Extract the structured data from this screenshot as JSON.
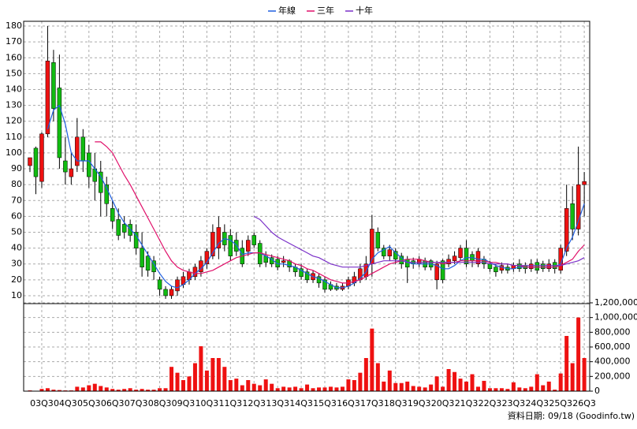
{
  "chart_data": {
    "type": "candlestick",
    "categories": [
      null,
      null,
      "03Q3",
      null,
      null,
      null,
      "04Q3",
      null,
      null,
      null,
      "05Q3",
      null,
      null,
      null,
      "06Q3",
      null,
      null,
      null,
      "07Q3",
      null,
      null,
      null,
      "08Q3",
      null,
      null,
      null,
      "09Q3",
      null,
      null,
      null,
      "10Q3",
      null,
      null,
      null,
      "11Q3",
      null,
      null,
      null,
      "12Q3",
      null,
      null,
      null,
      "13Q3",
      null,
      null,
      null,
      "14Q3",
      null,
      null,
      null,
      "15Q3",
      null,
      null,
      null,
      "16Q3",
      null,
      null,
      null,
      "17Q3",
      null,
      null,
      null,
      "18Q3",
      null,
      null,
      null,
      "19Q3",
      null,
      null,
      null,
      "20Q3",
      null,
      null,
      null,
      "21Q3",
      null,
      null,
      null,
      "22Q3",
      null,
      null,
      null,
      "23Q3",
      null,
      null,
      null,
      "24Q3",
      null,
      null,
      null,
      "25Q3",
      null,
      null,
      null,
      "26Q3"
    ],
    "candles": {
      "open": [
        92,
        103,
        82,
        112,
        157,
        141,
        95,
        85,
        92,
        110,
        100,
        90,
        88,
        80,
        65,
        58,
        55,
        55,
        50,
        40,
        35,
        32,
        20,
        14,
        10,
        13,
        17,
        20,
        22,
        25,
        30,
        35,
        40,
        50,
        48,
        45,
        40,
        38,
        48,
        43,
        35,
        34,
        33,
        31,
        32,
        28,
        27,
        25,
        20,
        22,
        20,
        17,
        16,
        14,
        16,
        18,
        20,
        22,
        30,
        50,
        40,
        35,
        38,
        35,
        33,
        32,
        30,
        32,
        32,
        20,
        32,
        30,
        32,
        34,
        40,
        36,
        30,
        33,
        30,
        28,
        26,
        28,
        27,
        30,
        29,
        27,
        31,
        30,
        27,
        31,
        26,
        38,
        68,
        52,
        80
      ],
      "high": [
        97,
        104,
        113,
        180,
        165,
        162,
        110,
        100,
        122,
        115,
        105,
        100,
        95,
        85,
        70,
        65,
        60,
        58,
        55,
        50,
        38,
        35,
        22,
        16,
        16,
        22,
        25,
        27,
        30,
        35,
        40,
        55,
        60,
        55,
        52,
        50,
        45,
        48,
        50,
        45,
        38,
        36,
        35,
        35,
        33,
        30,
        30,
        27,
        26,
        24,
        22,
        19,
        18,
        18,
        22,
        25,
        30,
        35,
        61,
        53,
        42,
        42,
        40,
        37,
        35,
        34,
        35,
        34,
        33,
        32,
        33,
        36,
        38,
        42,
        45,
        38,
        40,
        35,
        32,
        30,
        31,
        30,
        31,
        33,
        31,
        33,
        33,
        32,
        33,
        33,
        42,
        80,
        79,
        104,
        88
      ],
      "low": [
        88,
        74,
        78,
        110,
        120,
        90,
        80,
        80,
        88,
        88,
        78,
        70,
        60,
        60,
        52,
        45,
        46,
        44,
        36,
        22,
        22,
        20,
        10,
        8,
        8,
        10,
        15,
        17,
        20,
        22,
        27,
        33,
        33,
        38,
        32,
        35,
        28,
        35,
        40,
        28,
        28,
        28,
        26,
        28,
        25,
        22,
        20,
        18,
        18,
        15,
        12,
        13,
        13,
        13,
        14,
        16,
        18,
        20,
        22,
        38,
        33,
        32,
        30,
        27,
        18,
        27,
        28,
        26,
        26,
        14,
        18,
        28,
        30,
        32,
        28,
        28,
        28,
        27,
        25,
        22,
        24,
        24,
        25,
        25,
        24,
        25,
        24,
        25,
        25,
        24,
        24,
        35,
        45,
        48,
        60
      ],
      "close": [
        97,
        85,
        112,
        158,
        128,
        97,
        88,
        90,
        110,
        95,
        85,
        82,
        75,
        68,
        57,
        48,
        50,
        48,
        40,
        28,
        26,
        25,
        14,
        10,
        14,
        20,
        22,
        25,
        28,
        32,
        38,
        50,
        53,
        42,
        35,
        38,
        30,
        45,
        42,
        30,
        31,
        30,
        28,
        32,
        28,
        25,
        22,
        20,
        24,
        18,
        14,
        14,
        14,
        16,
        20,
        22,
        27,
        30,
        52,
        40,
        35,
        39,
        33,
        30,
        28,
        30,
        33,
        28,
        28,
        30,
        20,
        33,
        35,
        40,
        30,
        32,
        38,
        30,
        27,
        25,
        29,
        26,
        29,
        27,
        27,
        30,
        26,
        27,
        30,
        27,
        40,
        65,
        52,
        80,
        82
      ]
    },
    "up_color": "#ee1111",
    "down_color": "#11bb11",
    "series": [
      {
        "name": "年線",
        "color": "#1f5fe0",
        "values": [
          null,
          null,
          null,
          115,
          127,
          130,
          118,
          100,
          95,
          95,
          95,
          90,
          85,
          78,
          70,
          62,
          56,
          52,
          48,
          42,
          36,
          30,
          24,
          19,
          16,
          15,
          17,
          20,
          24,
          27,
          31,
          37,
          43,
          46,
          45,
          42,
          36,
          37,
          37,
          37,
          35,
          33,
          30,
          30,
          29,
          28,
          26,
          24,
          22,
          21,
          19,
          17,
          15,
          15,
          16,
          18,
          21,
          25,
          33,
          37,
          39,
          41,
          37,
          34,
          31,
          30,
          30,
          30,
          30,
          29,
          27,
          27,
          29,
          32,
          34,
          34,
          33,
          33,
          31,
          29,
          28,
          27,
          27,
          28,
          28,
          28,
          28,
          28,
          28,
          28,
          30,
          40,
          47,
          57,
          68
        ]
      },
      {
        "name": "三年",
        "color": "#e0106a",
        "values": [
          null,
          null,
          null,
          null,
          null,
          null,
          null,
          null,
          null,
          null,
          null,
          107,
          107,
          104,
          100,
          93,
          86,
          80,
          73,
          66,
          59,
          52,
          45,
          38,
          32,
          28,
          26,
          25,
          24,
          24,
          25,
          26,
          28,
          30,
          32,
          34,
          35,
          36,
          37,
          37,
          36,
          35,
          34,
          33,
          32,
          30,
          29,
          27,
          26,
          24,
          22,
          20,
          19,
          18,
          18,
          19,
          20,
          22,
          24,
          26,
          28,
          30,
          31,
          32,
          33,
          33,
          33,
          32,
          31,
          31,
          30,
          31,
          31,
          32,
          32,
          32,
          32,
          32,
          31,
          31,
          30,
          30,
          29,
          29,
          28,
          28,
          28,
          28,
          28,
          28,
          29,
          31,
          33,
          38,
          42
        ]
      },
      {
        "name": "十年",
        "color": "#7a30c8",
        "values": [
          null,
          null,
          null,
          null,
          null,
          null,
          null,
          null,
          null,
          null,
          null,
          null,
          null,
          null,
          null,
          null,
          null,
          null,
          null,
          null,
          null,
          null,
          null,
          null,
          null,
          null,
          null,
          null,
          null,
          null,
          null,
          null,
          null,
          null,
          null,
          null,
          null,
          null,
          60,
          58,
          54,
          50,
          47,
          45,
          43,
          41,
          39,
          37,
          35,
          34,
          32,
          30,
          29,
          28,
          28,
          28,
          28,
          29,
          30,
          31,
          32,
          32,
          32,
          32,
          31,
          31,
          31,
          31,
          31,
          31,
          31,
          31,
          31,
          31,
          31,
          31,
          31,
          31,
          30,
          30,
          30,
          30,
          29,
          29,
          29,
          29,
          29,
          29,
          29,
          29,
          29,
          30,
          31,
          32,
          34
        ]
      }
    ],
    "volume": {
      "color": "#ee1111",
      "values": [
        10000,
        5000,
        30000,
        40000,
        20000,
        15000,
        10000,
        10000,
        60000,
        50000,
        80000,
        100000,
        70000,
        50000,
        30000,
        20000,
        30000,
        40000,
        20000,
        30000,
        20000,
        20000,
        40000,
        40000,
        330000,
        250000,
        150000,
        200000,
        380000,
        610000,
        280000,
        450000,
        450000,
        330000,
        150000,
        170000,
        80000,
        150000,
        100000,
        80000,
        160000,
        100000,
        40000,
        60000,
        50000,
        60000,
        40000,
        90000,
        40000,
        50000,
        50000,
        60000,
        50000,
        60000,
        160000,
        150000,
        250000,
        450000,
        850000,
        380000,
        130000,
        280000,
        110000,
        110000,
        130000,
        70000,
        60000,
        50000,
        90000,
        200000,
        60000,
        300000,
        260000,
        170000,
        130000,
        230000,
        60000,
        140000,
        40000,
        40000,
        40000,
        30000,
        120000,
        50000,
        40000,
        60000,
        230000,
        80000,
        130000,
        20000,
        240000,
        750000,
        380000,
        1000000,
        450000
      ],
      "ylim": [
        0,
        1200000
      ],
      "yticks": [
        0,
        {
          "value": 200000,
          "label": "200,000"
        },
        {
          "value": 400000,
          "label": "400,000"
        },
        {
          "value": 600000,
          "label": "600,000"
        },
        {
          "value": 800000,
          "label": "800,000"
        },
        {
          "value": 1000000,
          "label": "1,000,000"
        },
        {
          "value": 1200000,
          "label": "1,200,000"
        }
      ]
    },
    "ylim": [
      5,
      183
    ],
    "yticks": [
      10,
      20,
      30,
      40,
      50,
      60,
      70,
      80,
      90,
      100,
      110,
      120,
      130,
      140,
      150,
      160,
      170,
      180
    ],
    "grid": true,
    "footer": "資料日期: 09/18  (Goodinfo.tw)"
  }
}
